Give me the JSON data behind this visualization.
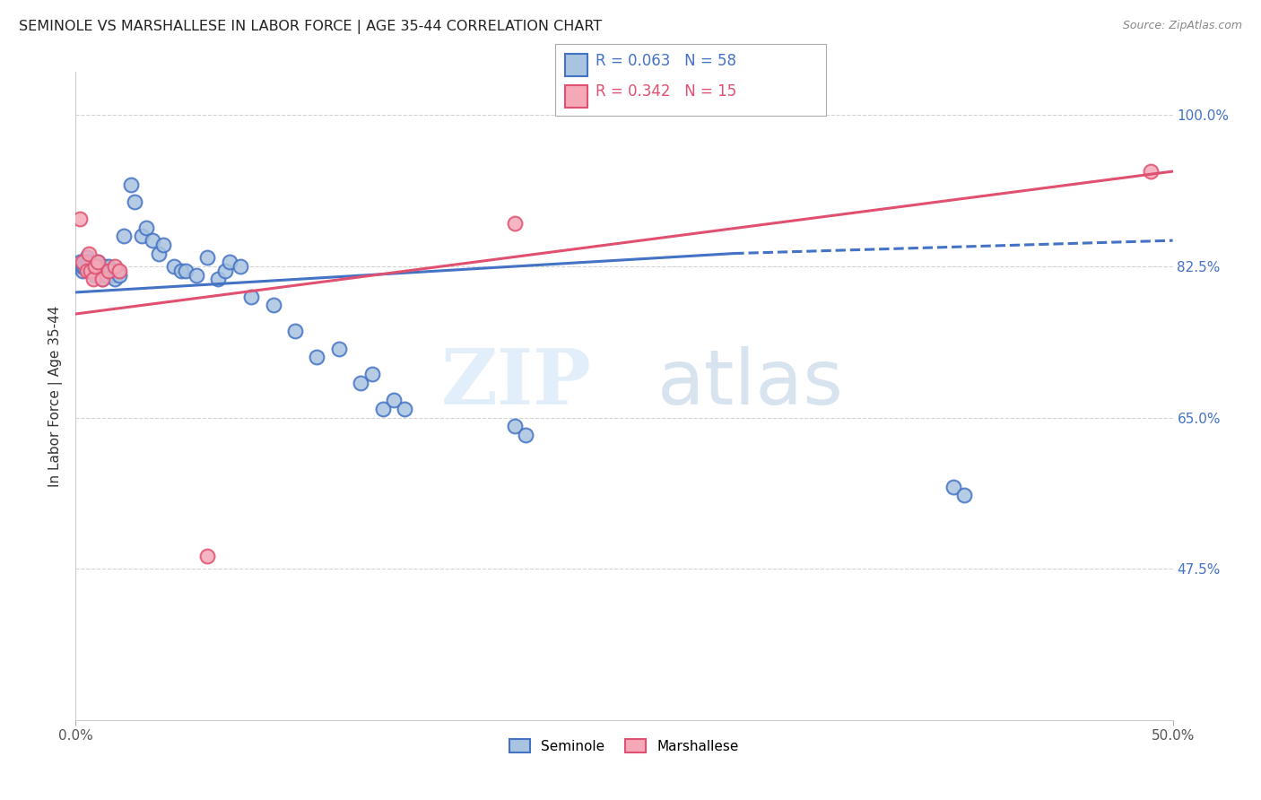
{
  "title": "SEMINOLE VS MARSHALLESE IN LABOR FORCE | AGE 35-44 CORRELATION CHART",
  "source": "Source: ZipAtlas.com",
  "ylabel": "In Labor Force | Age 35-44",
  "xlim": [
    0.0,
    0.5
  ],
  "ylim": [
    0.3,
    1.05
  ],
  "seminole_R": 0.063,
  "seminole_N": 58,
  "marshallese_R": 0.342,
  "marshallese_N": 15,
  "seminole_color": "#a8c4e0",
  "seminole_line_color": "#4472c4",
  "marshallese_color": "#f4a8b8",
  "marshallese_line_color": "#e05070",
  "background_color": "#ffffff",
  "grid_color": "#c8c8c8",
  "seminole_x": [
    0.001,
    0.002,
    0.003,
    0.003,
    0.004,
    0.004,
    0.005,
    0.005,
    0.006,
    0.006,
    0.007,
    0.007,
    0.008,
    0.009,
    0.01,
    0.01,
    0.011,
    0.012,
    0.013,
    0.013,
    0.014,
    0.015,
    0.016,
    0.017,
    0.018,
    0.019,
    0.02,
    0.022,
    0.025,
    0.027,
    0.03,
    0.032,
    0.035,
    0.038,
    0.04,
    0.045,
    0.048,
    0.05,
    0.055,
    0.06,
    0.065,
    0.068,
    0.07,
    0.075,
    0.08,
    0.09,
    0.1,
    0.11,
    0.12,
    0.13,
    0.135,
    0.14,
    0.145,
    0.15,
    0.2,
    0.205,
    0.4,
    0.405
  ],
  "seminole_y": [
    0.825,
    0.83,
    0.82,
    0.825,
    0.83,
    0.825,
    0.835,
    0.83,
    0.825,
    0.83,
    0.82,
    0.825,
    0.82,
    0.815,
    0.83,
    0.825,
    0.82,
    0.81,
    0.825,
    0.82,
    0.815,
    0.825,
    0.82,
    0.815,
    0.81,
    0.82,
    0.815,
    0.86,
    0.92,
    0.9,
    0.86,
    0.87,
    0.855,
    0.84,
    0.85,
    0.825,
    0.82,
    0.82,
    0.815,
    0.835,
    0.81,
    0.82,
    0.83,
    0.825,
    0.79,
    0.78,
    0.75,
    0.72,
    0.73,
    0.69,
    0.7,
    0.66,
    0.67,
    0.66,
    0.64,
    0.63,
    0.57,
    0.56
  ],
  "marshallese_x": [
    0.002,
    0.003,
    0.005,
    0.006,
    0.007,
    0.008,
    0.009,
    0.01,
    0.012,
    0.015,
    0.018,
    0.02,
    0.06,
    0.2,
    0.49
  ],
  "marshallese_y": [
    0.88,
    0.83,
    0.82,
    0.84,
    0.82,
    0.81,
    0.825,
    0.83,
    0.81,
    0.82,
    0.825,
    0.82,
    0.49,
    0.875,
    0.935
  ],
  "ytick_positions": [
    1.0,
    0.825,
    0.65,
    0.475
  ],
  "ytick_labels": [
    "100.0%",
    "82.5%",
    "65.0%",
    "47.5%"
  ],
  "xtick_positions": [
    0.0,
    0.5
  ],
  "xtick_labels": [
    "0.0%",
    "50.0%"
  ]
}
